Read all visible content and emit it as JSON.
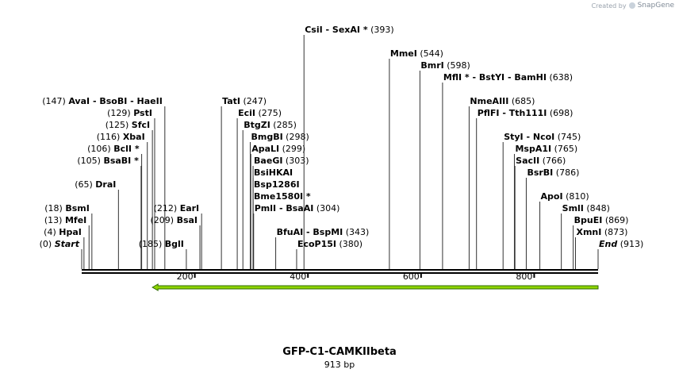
{
  "watermark": {
    "created_by": "Created by",
    "brand": "SnapGene",
    "icon": "snapgene-logo-icon"
  },
  "plasmid": {
    "name": "GFP-C1-CAMKIIbeta",
    "length_label": "913 bp",
    "length": 913
  },
  "colors": {
    "feature_arrow": "#8fd400",
    "feature_outline": "#2e6b00",
    "line": "#000000"
  },
  "axis": {
    "ticks": [
      {
        "value": 200,
        "label": "200"
      },
      {
        "value": 400,
        "label": "400"
      },
      {
        "value": 600,
        "label": "600"
      },
      {
        "value": 800,
        "label": "800"
      }
    ]
  },
  "feature": {
    "start": 125,
    "end": 913,
    "direction": "reverse"
  },
  "sites": [
    {
      "pos": 0,
      "label": "Start",
      "num": "(0)",
      "side": "left",
      "level": 1,
      "ends": true
    },
    {
      "pos": 4,
      "label": "HpaI",
      "num": "(4)",
      "side": "left",
      "level": 2
    },
    {
      "pos": 13,
      "label": "MfeI",
      "num": "(13)",
      "side": "left",
      "level": 3
    },
    {
      "pos": 18,
      "label": "BsmI",
      "num": "(18)",
      "side": "left",
      "level": 4
    },
    {
      "pos": 65,
      "label": "DraI",
      "num": "(65)",
      "side": "left",
      "level": 6
    },
    {
      "pos": 105,
      "label": "BsaBI *",
      "num": "(105)",
      "side": "left",
      "level": 8
    },
    {
      "pos": 106,
      "label": "BclI *",
      "num": "(106)",
      "side": "left",
      "level": 9
    },
    {
      "pos": 116,
      "label": "XbaI",
      "num": "(116)",
      "side": "left",
      "level": 10
    },
    {
      "pos": 125,
      "label": "SfcI",
      "num": "(125)",
      "side": "left",
      "level": 11
    },
    {
      "pos": 129,
      "label": "PstI",
      "num": "(129)",
      "side": "left",
      "level": 12
    },
    {
      "pos": 147,
      "label": "AvaI  - BsoBI  - HaeII",
      "num": "(147)",
      "side": "left",
      "level": 13
    },
    {
      "pos": 185,
      "label": "BglI",
      "num": "(185)",
      "side": "left",
      "level": 1
    },
    {
      "pos": 209,
      "label": "BsaI",
      "num": "(209)",
      "side": "left",
      "level": 3
    },
    {
      "pos": 212,
      "label": "EarI",
      "num": "(212)",
      "side": "left",
      "level": 4
    },
    {
      "pos": 247,
      "label": "TatI",
      "num": "(247)",
      "side": "right",
      "level": 13
    },
    {
      "pos": 275,
      "label": "EciI",
      "num": "(275)",
      "side": "right",
      "level": 12
    },
    {
      "pos": 285,
      "label": "BtgZI",
      "num": "(285)",
      "side": "right",
      "level": 11
    },
    {
      "pos": 298,
      "label": "BmgBI",
      "num": "(298)",
      "side": "right",
      "level": 10
    },
    {
      "pos": 299,
      "label": "ApaLI",
      "num": "(299)",
      "side": "right",
      "level": 9
    },
    {
      "pos": 303,
      "label": "BaeGI",
      "num": "(303)",
      "side": "right",
      "level": 8
    },
    {
      "pos": 303,
      "label": "BsiHKAI",
      "num": "",
      "side": "right",
      "level": 7
    },
    {
      "pos": 303,
      "label": "Bsp1286I",
      "num": "",
      "side": "right",
      "level": 6
    },
    {
      "pos": 303,
      "label": "Bme1580I *",
      "num": "",
      "side": "right",
      "level": 5
    },
    {
      "pos": 304,
      "label": "PmlI  - BsaAI",
      "num": "(304)",
      "side": "right",
      "level": 4
    },
    {
      "pos": 343,
      "label": "BfuAI  - BspMI",
      "num": "(343)",
      "side": "right",
      "level": 2
    },
    {
      "pos": 380,
      "label": "EcoP15I",
      "num": "(380)",
      "side": "right",
      "level": 1
    },
    {
      "pos": 393,
      "label": "CsiI  - SexAI *",
      "num": "(393)",
      "side": "right",
      "level": 19
    },
    {
      "pos": 544,
      "label": "MmeI",
      "num": "(544)",
      "side": "right",
      "level": 17
    },
    {
      "pos": 598,
      "label": "BmrI",
      "num": "(598)",
      "side": "right",
      "level": 16
    },
    {
      "pos": 638,
      "label": "MflI *  - BstYI  - BamHI",
      "num": "(638)",
      "side": "right",
      "level": 15
    },
    {
      "pos": 685,
      "label": "NmeAIII",
      "num": "(685)",
      "side": "right",
      "level": 13
    },
    {
      "pos": 698,
      "label": "PflFI  - Tth111I",
      "num": "(698)",
      "side": "right",
      "level": 12
    },
    {
      "pos": 745,
      "label": "StyI  - NcoI",
      "num": "(745)",
      "side": "right",
      "level": 10
    },
    {
      "pos": 765,
      "label": "MspA1I",
      "num": "(765)",
      "side": "right",
      "level": 9
    },
    {
      "pos": 766,
      "label": "SacII",
      "num": "(766)",
      "side": "right",
      "level": 8
    },
    {
      "pos": 786,
      "label": "BsrBI",
      "num": "(786)",
      "side": "right",
      "level": 7
    },
    {
      "pos": 810,
      "label": "ApoI",
      "num": "(810)",
      "side": "right",
      "level": 5
    },
    {
      "pos": 848,
      "label": "SmlI",
      "num": "(848)",
      "side": "right",
      "level": 4
    },
    {
      "pos": 869,
      "label": "BpuEI",
      "num": "(869)",
      "side": "right",
      "level": 3
    },
    {
      "pos": 873,
      "label": "XmnI",
      "num": "(873)",
      "side": "right",
      "level": 2
    },
    {
      "pos": 913,
      "label": "End",
      "num": "(913)",
      "side": "right",
      "level": 1,
      "ends": true
    }
  ]
}
